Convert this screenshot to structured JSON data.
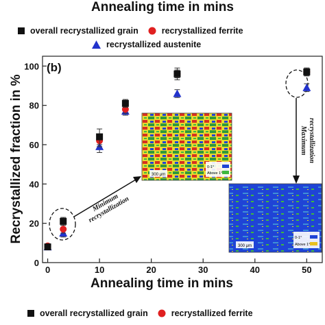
{
  "top_title": "Annealing time in mins",
  "panel_label": "(b)",
  "legend_top_row1": [
    "overall recrystallized grain",
    "recrystallized ferrite"
  ],
  "legend_top_row2": [
    "recrystallized austenite"
  ],
  "legend_bottom_row": [
    "overall recrystallized grain",
    "recrystallized ferrite"
  ],
  "annotations": {
    "minimum": "Minimum recrystallization",
    "maximum": "Maximum recrystallization",
    "inset1_scale": "300 μm",
    "inset1_legend1": "0-1°",
    "inset1_legend2": "Above 1°",
    "inset2_scale": "300 μm",
    "inset2_legend1": "0-1°",
    "inset2_legend2": "Above 1°"
  },
  "colors": {
    "overall": "#111111",
    "ferrite": "#e02020",
    "austenite": "#2233cc",
    "inset_blue": "#1f44d6",
    "inset_green": "#3fb83f",
    "inset_yellow": "#e8e020",
    "inset_red": "#d83020"
  },
  "chart_data": {
    "type": "scatter",
    "xlabel": "Annealing time in mins",
    "ylabel": "Recrystallized fraction in %",
    "xlim": [
      -1,
      53
    ],
    "ylim": [
      0,
      105
    ],
    "xticks": [
      0,
      10,
      20,
      30,
      40,
      50
    ],
    "yticks": [
      0,
      20,
      40,
      60,
      80,
      100
    ],
    "series": [
      {
        "name": "overall recrystallized grain",
        "marker": "square",
        "x": [
          0,
          3,
          10,
          15,
          25,
          50
        ],
        "y": [
          8,
          21,
          64,
          81,
          96,
          97
        ],
        "err": [
          1,
          2,
          4,
          2,
          3,
          2
        ]
      },
      {
        "name": "recrystallized ferrite",
        "marker": "circle",
        "x": [
          0,
          3,
          10,
          15,
          25,
          50
        ],
        "y": [
          8.5,
          17,
          62,
          78,
          96,
          97
        ],
        "err": [
          1,
          2,
          3,
          2,
          2,
          2
        ]
      },
      {
        "name": "recrystallized austenite",
        "marker": "triangle",
        "x": [
          0,
          3,
          10,
          15,
          25,
          50
        ],
        "y": [
          8,
          15,
          59,
          77,
          86,
          89
        ],
        "err": [
          1,
          2,
          3,
          2,
          2,
          2
        ]
      }
    ]
  }
}
